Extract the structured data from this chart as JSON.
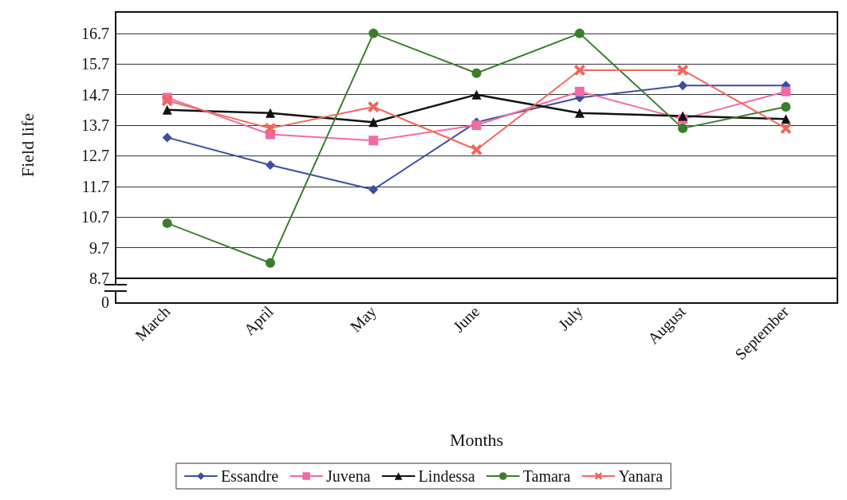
{
  "chart_data": {
    "type": "line",
    "xlabel": "Months",
    "ylabel": "Field life",
    "categories": [
      "March",
      "April",
      "May",
      "June",
      "July",
      "August",
      "September"
    ],
    "ylim": [
      8.7,
      17.4
    ],
    "yticks": [
      8.7,
      9.7,
      10.7,
      11.7,
      12.7,
      13.7,
      14.7,
      15.7,
      16.7
    ],
    "annotations": [
      "0"
    ],
    "grid": "y",
    "legend": "bottom",
    "line_style": "solid",
    "series": [
      {
        "name": "Essandre",
        "color": "#3c4fa0",
        "marker": "diamond",
        "values": [
          13.3,
          12.4,
          11.6,
          13.8,
          14.6,
          15.0,
          15.0
        ]
      },
      {
        "name": "Juvena",
        "color": "#f06aa8",
        "marker": "square",
        "values": [
          14.6,
          13.4,
          13.2,
          13.7,
          14.8,
          13.9,
          14.8
        ]
      },
      {
        "name": "Lindessa",
        "color": "#111111",
        "marker": "triangle",
        "values": [
          14.2,
          14.1,
          13.8,
          14.7,
          14.1,
          14.0,
          13.9
        ]
      },
      {
        "name": "Tamara",
        "color": "#3a7d2c",
        "marker": "circle",
        "values": [
          10.5,
          9.2,
          16.7,
          15.4,
          16.7,
          13.6,
          14.3
        ]
      },
      {
        "name": "Yanara",
        "color": "#f2675a",
        "marker": "cross",
        "values": [
          14.5,
          13.6,
          14.3,
          12.9,
          15.5,
          15.5,
          13.6
        ]
      }
    ]
  }
}
